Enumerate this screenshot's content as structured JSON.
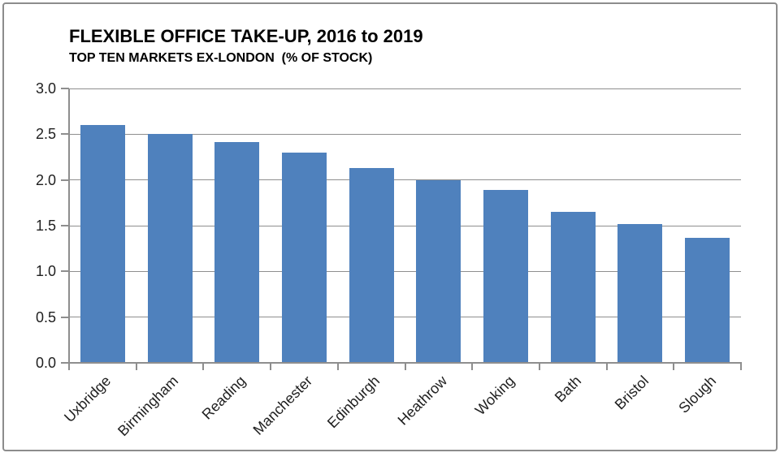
{
  "frame": {
    "background": "#FFFFFF",
    "border_color": "#8C8C8C"
  },
  "header": {
    "title": "FLEXIBLE OFFICE TAKE-UP, 2016 to 2019",
    "subtitle": "TOP TEN MARKETS EX-LONDON  (% OF STOCK)"
  },
  "chart_data": {
    "type": "bar",
    "title": "FLEXIBLE OFFICE TAKE-UP, 2016 to 2019",
    "subtitle": "TOP TEN MARKETS EX-LONDON  (% OF STOCK)",
    "categories": [
      "Uxbridge",
      "Birmingham",
      "Reading",
      "Manchester",
      "Edinburgh",
      "Heathrow",
      "Woking",
      "Bath",
      "Bristol",
      "Slough"
    ],
    "values": [
      2.6,
      2.5,
      2.41,
      2.3,
      2.13,
      2.0,
      1.89,
      1.65,
      1.52,
      1.37
    ],
    "xlabel": "",
    "ylabel": "",
    "ylim": [
      0,
      3.0
    ],
    "ytick_step": 0.5,
    "ytick_labels": [
      "0.0",
      "0.5",
      "1.0",
      "1.5",
      "2.0",
      "2.5",
      "3.0"
    ],
    "grid": true,
    "legend_position": "none",
    "bar_color": "#4F81BD",
    "gridline_color": "#8E8E8E",
    "axis_color": "#8E8E8E",
    "tick_label_color": "#1f1f1f",
    "category_label_rotation_deg": -45
  }
}
